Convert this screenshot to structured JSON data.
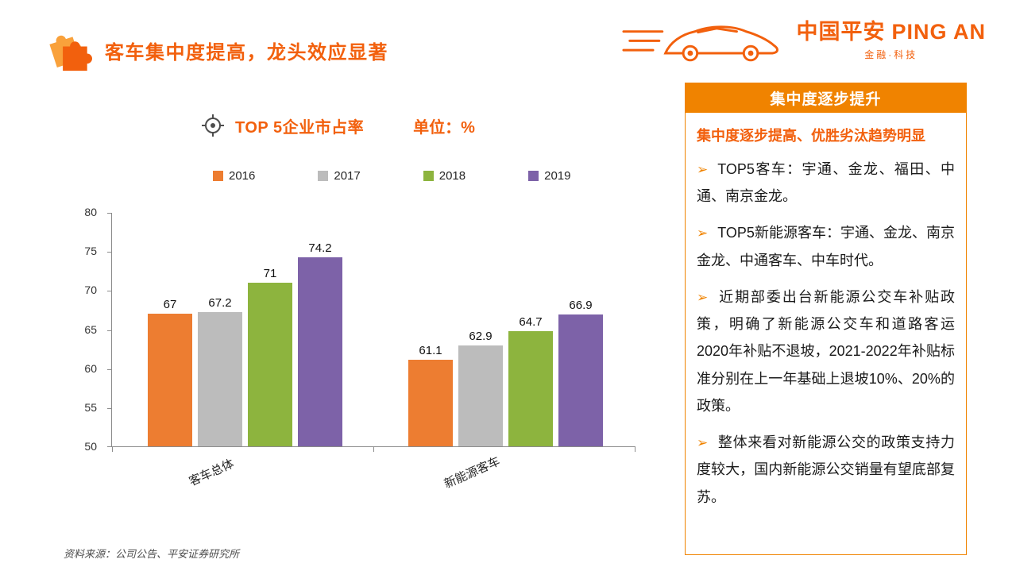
{
  "page": {
    "title": "客车集中度提高，龙头效应显著",
    "source_note": "资料来源：公司公告、平安证券研究所"
  },
  "logo": {
    "brand_cn": "中国平安",
    "brand_en": "PING AN",
    "tagline": "金融·科技"
  },
  "chart_header": {
    "title": "TOP 5企业市占率",
    "unit_label": "单位：%"
  },
  "chart_data": {
    "type": "bar",
    "title": "TOP 5企业市占率",
    "unit": "%",
    "categories": [
      "客车总体",
      "新能源客车"
    ],
    "series": [
      {
        "name": "2016",
        "color": "#ED7D31",
        "values": [
          67,
          61.1
        ]
      },
      {
        "name": "2017",
        "color": "#BCBCBC",
        "values": [
          67.2,
          62.9
        ]
      },
      {
        "name": "2018",
        "color": "#8DB43E",
        "values": [
          71,
          64.7
        ]
      },
      {
        "name": "2019",
        "color": "#7D62A8",
        "values": [
          74.2,
          66.9
        ]
      }
    ],
    "ylim": [
      50,
      80
    ],
    "yticks": [
      50,
      55,
      60,
      65,
      70,
      75,
      80
    ],
    "grid": false,
    "legend_position": "top"
  },
  "panel": {
    "header": "集中度逐步提升",
    "subtitle": "集中度逐步提高、优胜劣汰趋势明显",
    "bullet_marker": "➢",
    "bullets": [
      "TOP5客车：宇通、金龙、福田、中通、南京金龙。",
      "TOP5新能源客车：宇通、金龙、南京金龙、中通客车、中车时代。",
      "近期部委出台新能源公交车补贴政策，明确了新能源公交车和道路客运2020年补贴不退坡，2021-2022年补贴标准分别在上一年基础上退坡10%、20%的政策。",
      "整体来看对新能源公交的政策支持力度较大，国内新能源公交销量有望底部复苏。"
    ]
  },
  "colors": {
    "accent": "#F2600D",
    "panel_header_bg": "#F08300",
    "axis": "#8C8C8C"
  }
}
